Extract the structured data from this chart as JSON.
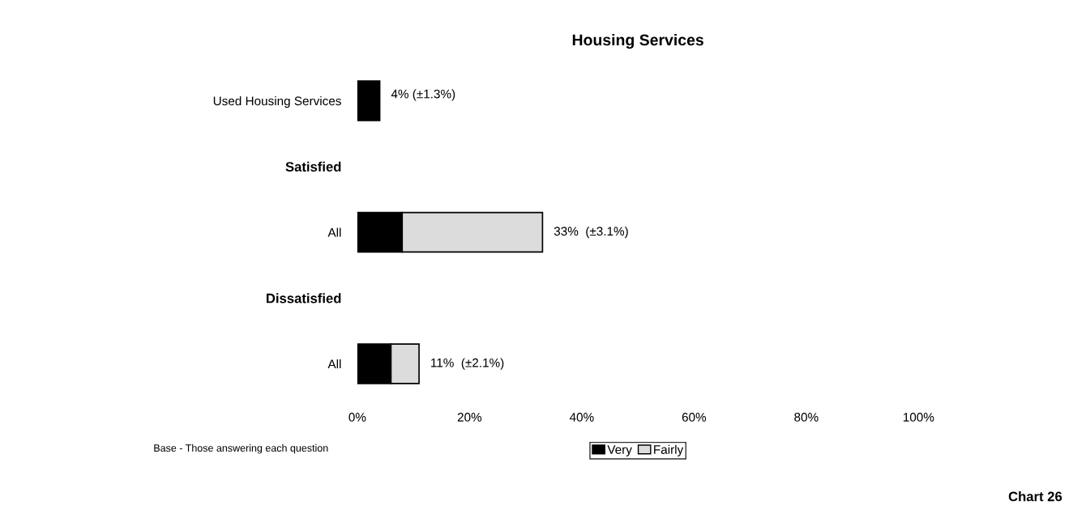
{
  "chart_data": {
    "type": "bar",
    "orientation": "horizontal",
    "stacked": true,
    "title": "Housing Services",
    "categories": [
      "Used Housing Services",
      "Satisfied",
      "All",
      "Dissatisfied",
      "All"
    ],
    "series": [
      {
        "name": "Very",
        "color": "#000000",
        "values": [
          4,
          null,
          8,
          null,
          6
        ]
      },
      {
        "name": "Fairly",
        "color": "#dcdcdc",
        "values": [
          null,
          null,
          25,
          null,
          5
        ]
      }
    ],
    "totals": [
      "4% (±1.3%)",
      null,
      "33%  (±3.1%)",
      null,
      "11%  (±2.1%)"
    ],
    "xlim": [
      0,
      100
    ],
    "xticks": [
      {
        "value": 0,
        "label": "0%"
      },
      {
        "value": 20,
        "label": "20%"
      },
      {
        "value": 40,
        "label": "40%"
      },
      {
        "value": 60,
        "label": "60%"
      },
      {
        "value": 80,
        "label": "80%"
      },
      {
        "value": 100,
        "label": "100%"
      }
    ],
    "grid": false,
    "legend": "bottom",
    "annotations": [
      "Base - Those answering each question",
      "Chart 26"
    ]
  }
}
